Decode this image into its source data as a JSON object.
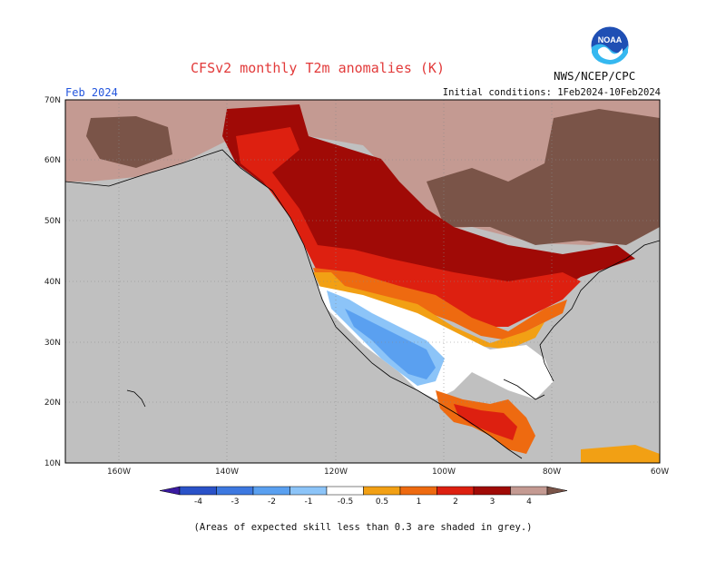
{
  "title": "CFSv2 monthly T2m anomalies (K)",
  "agency": "NWS/NCEP/CPC",
  "logo_text": "NOAA",
  "month_label": "Feb 2024",
  "initial_conditions": "Initial conditions: 1Feb2024-10Feb2024",
  "footnote": "(Areas of expected skill less than 0.3 are shaded in grey.)",
  "map": {
    "lon_labels": [
      "160W",
      "140W",
      "120W",
      "100W",
      "80W",
      "60W"
    ],
    "lat_labels": [
      "70N",
      "60N",
      "50N",
      "40N",
      "30N",
      "20N",
      "10N"
    ],
    "grey_color": "#c0c0c0"
  },
  "colorbar": {
    "labels": [
      "-4",
      "-3",
      "-2",
      "-1",
      "-0.5",
      "0.5",
      "1",
      "2",
      "3",
      "4"
    ],
    "colors": [
      "#3a1aa0",
      "#2a52c8",
      "#3d78e0",
      "#5aa0f0",
      "#8cc4f8",
      "#ffffff",
      "#f2a014",
      "#ee6a10",
      "#dd2010",
      "#a00a06",
      "#c49a92",
      "#7a5448"
    ]
  }
}
